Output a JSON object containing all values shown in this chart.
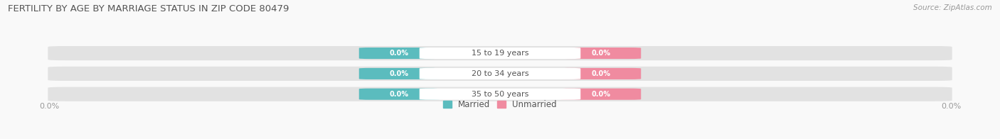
{
  "title": "FERTILITY BY AGE BY MARRIAGE STATUS IN ZIP CODE 80479",
  "source": "Source: ZipAtlas.com",
  "categories": [
    "15 to 19 years",
    "20 to 34 years",
    "35 to 50 years"
  ],
  "married_values": [
    0.0,
    0.0,
    0.0
  ],
  "unmarried_values": [
    0.0,
    0.0,
    0.0
  ],
  "married_color": "#5bbcbe",
  "unmarried_color": "#f08ba0",
  "bar_bg_color": "#e2e2e2",
  "bg_color": "#f9f9f9",
  "center_label_color": "#555555",
  "title_color": "#555555",
  "source_color": "#999999",
  "axis_label_color": "#999999",
  "figsize": [
    14.06,
    1.96
  ],
  "dpi": 100
}
